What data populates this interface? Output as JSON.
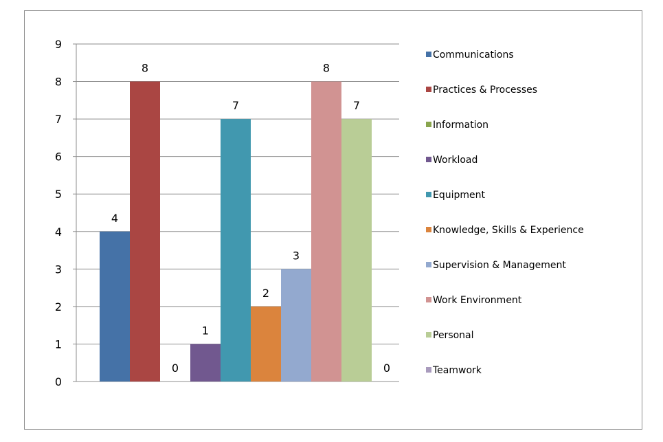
{
  "chart_data": {
    "type": "bar",
    "title": "",
    "xlabel": "",
    "ylabel": "",
    "ylim": [
      0,
      9
    ],
    "yticks": [
      0,
      1,
      2,
      3,
      4,
      5,
      6,
      7,
      8,
      9
    ],
    "grid": "horizontal",
    "legend_placement": "right",
    "series": [
      {
        "name": "Communications",
        "value": 4,
        "color": "#4572A7"
      },
      {
        "name": "Practices & Processes",
        "value": 8,
        "color": "#AA4643"
      },
      {
        "name": "Information",
        "value": 0,
        "color": "#89A54E"
      },
      {
        "name": "Workload",
        "value": 1,
        "color": "#71588F"
      },
      {
        "name": "Equipment",
        "value": 7,
        "color": "#4198AF"
      },
      {
        "name": "Knowledge, Skills & Experience",
        "value": 2,
        "color": "#DB843D"
      },
      {
        "name": "Supervision & Management",
        "value": 3,
        "color": "#93A9CF"
      },
      {
        "name": "Work Environment",
        "value": 8,
        "color": "#D19392"
      },
      {
        "name": "Personal",
        "value": 7,
        "color": "#B9CD96"
      },
      {
        "name": "Teamwork",
        "value": 0,
        "color": "#A99BBD"
      }
    ]
  }
}
